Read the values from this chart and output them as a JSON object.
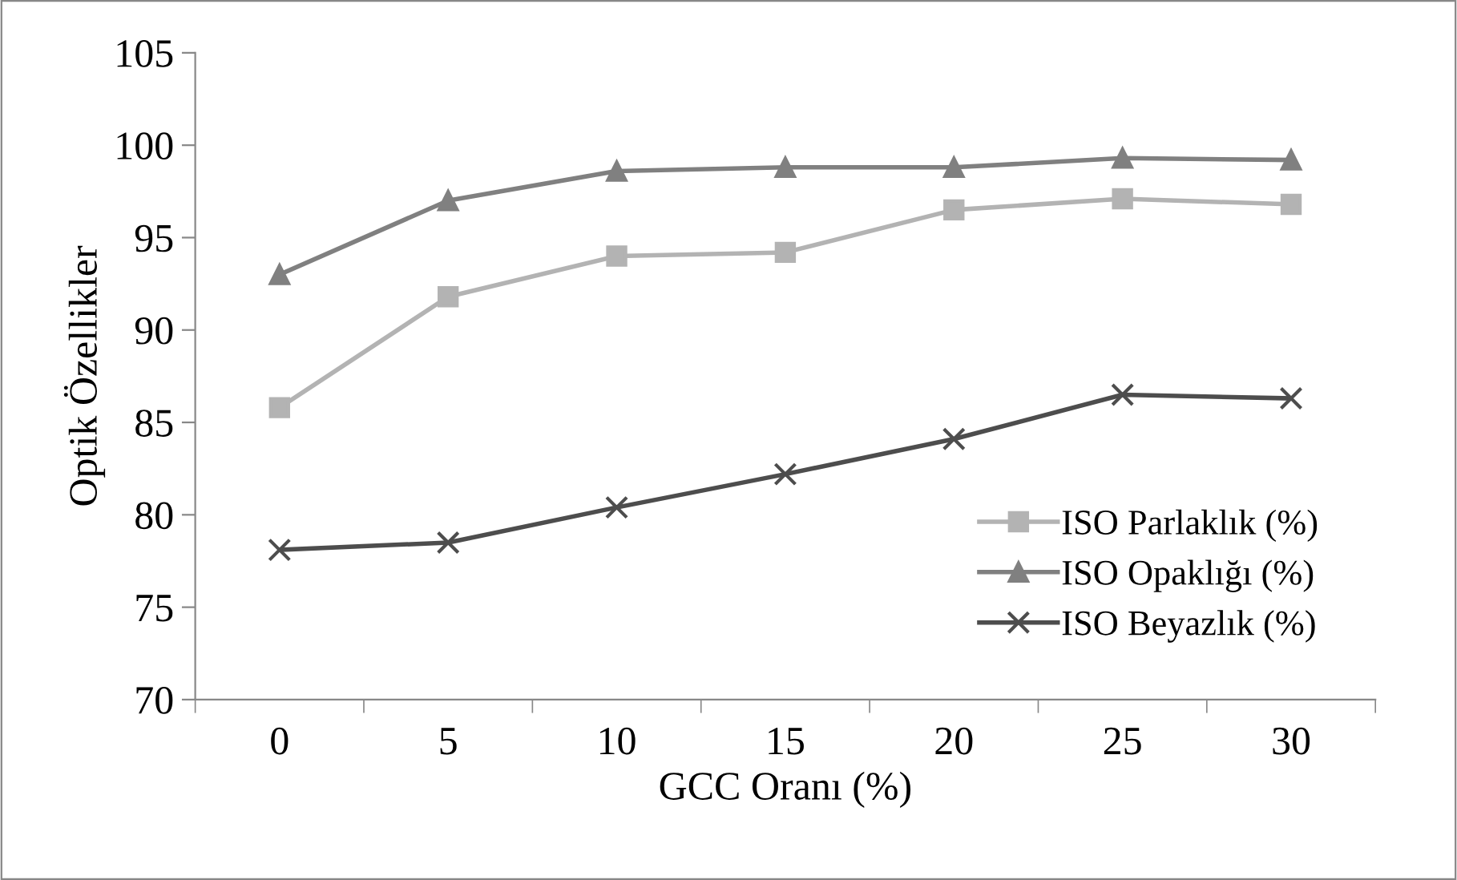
{
  "chart_data": {
    "type": "line",
    "xlabel": "GCC Oranı (%)",
    "ylabel": "Optik Özellikler",
    "categories": [
      "0",
      "5",
      "10",
      "15",
      "20",
      "25",
      "30"
    ],
    "series": [
      {
        "name": "ISO Parlaklık (%)",
        "color": "#b3b3b3",
        "marker": "square",
        "values": [
          85.8,
          91.8,
          94.0,
          94.2,
          96.5,
          97.1,
          96.8
        ]
      },
      {
        "name": "ISO Opaklığı (%)",
        "color": "#808080",
        "marker": "triangle",
        "values": [
          93.0,
          97.0,
          98.6,
          98.8,
          98.8,
          99.3,
          99.2
        ]
      },
      {
        "name": "ISO Beyazlık (%)",
        "color": "#4d4d4d",
        "marker": "cross",
        "values": [
          78.1,
          78.5,
          80.4,
          82.2,
          84.1,
          86.5,
          86.3
        ]
      }
    ],
    "ylim": [
      70,
      105
    ],
    "yticks": [
      70,
      75,
      80,
      85,
      90,
      95,
      100,
      105
    ],
    "grid": false,
    "legend": "bottom right",
    "line_style": "solid"
  }
}
